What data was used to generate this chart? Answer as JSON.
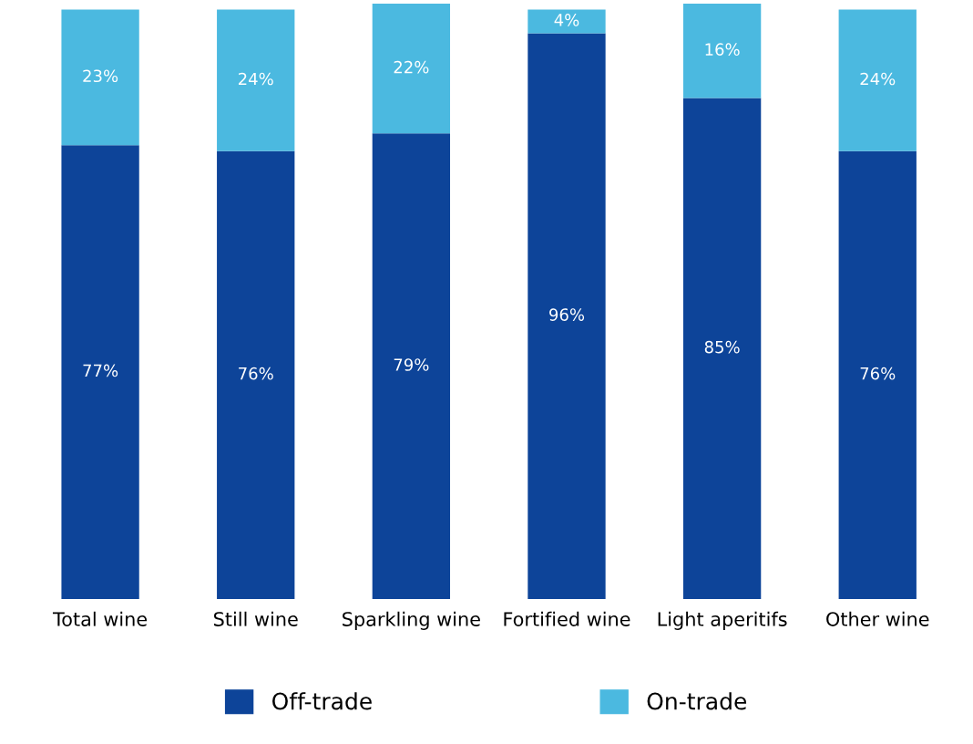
{
  "chart_data": {
    "type": "bar",
    "stacked": true,
    "categories": [
      "Total wine",
      "Still wine",
      "Sparkling wine",
      "Fortified wine",
      "Light aperitifs",
      "Other wine"
    ],
    "series": [
      {
        "name": "Off-trade",
        "color": "#0d4499",
        "values": [
          77,
          76,
          79,
          96,
          85,
          76
        ],
        "value_labels": [
          "77%",
          "76%",
          "79%",
          "96%",
          "85%",
          "76%"
        ]
      },
      {
        "name": "On-trade",
        "color": "#4bb9e0",
        "values": [
          23,
          24,
          22,
          4,
          16,
          24
        ],
        "value_labels": [
          "23%",
          "24%",
          "22%",
          "4%",
          "16%",
          "24%"
        ]
      }
    ],
    "legend": "bottom",
    "grid": false,
    "tick_labels": "x"
  }
}
